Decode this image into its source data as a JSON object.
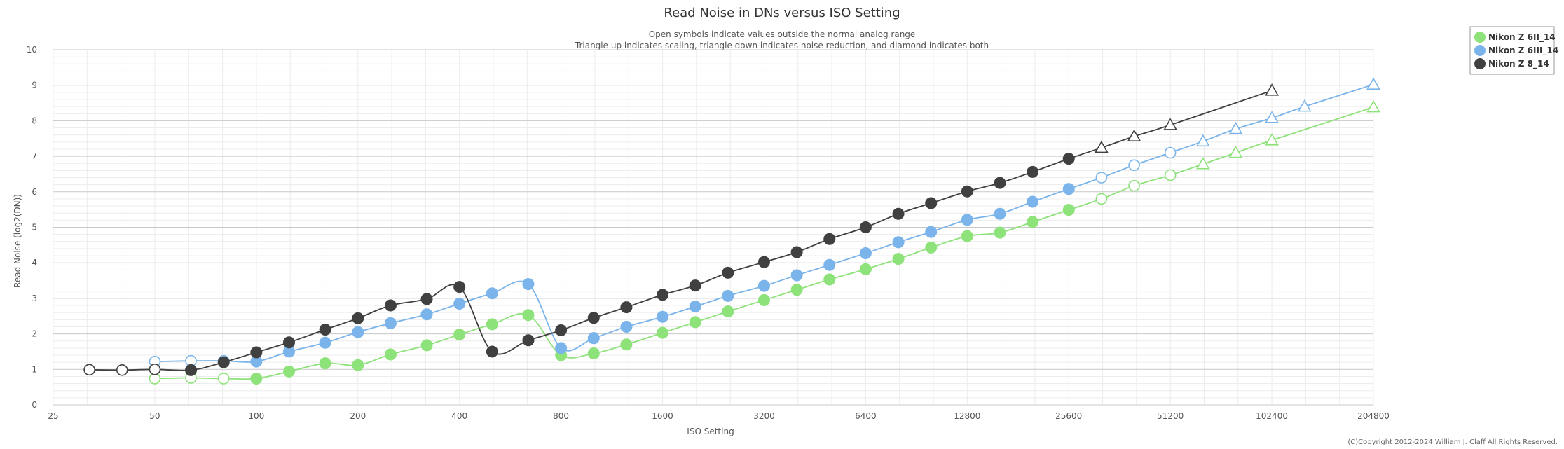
{
  "chart_data": {
    "type": "line",
    "title": "Read Noise in DNs versus ISO Setting",
    "subtitle_lines": [
      "Open symbols indicate values outside the normal analog range",
      "Triangle up indicates scaling, triangle down indicates noise reduction, and diamond indicates both"
    ],
    "xlabel": "ISO Setting",
    "ylabel": "Read Noise (log2(DN))",
    "x_scale": "log2",
    "x_range": [
      25,
      204800
    ],
    "x_ticks": [
      "25",
      "50",
      "100",
      "200",
      "400",
      "800",
      "1600",
      "3200",
      "6400",
      "12800",
      "25600",
      "51200",
      "102400",
      "204800"
    ],
    "y_range": [
      0,
      10
    ],
    "y_ticks": [
      "0",
      "1",
      "2",
      "3",
      "4",
      "5",
      "6",
      "7",
      "8",
      "9",
      "10"
    ],
    "grid": true,
    "legend_position": "top-right",
    "copyright": "(C)Copyright 2012-2024 William J. Claff All Rights Reserved.",
    "series": [
      {
        "name": "Nikon Z 6II_14",
        "color": "#8ee27a",
        "points": [
          {
            "iso": 50,
            "y": 0.74,
            "m": "open"
          },
          {
            "iso": 64,
            "y": 0.76,
            "m": "open"
          },
          {
            "iso": 80,
            "y": 0.74,
            "m": "open"
          },
          {
            "iso": 100,
            "y": 0.74,
            "m": "filled"
          },
          {
            "iso": 125,
            "y": 0.94,
            "m": "filled"
          },
          {
            "iso": 160,
            "y": 1.17,
            "m": "filled"
          },
          {
            "iso": 200,
            "y": 1.12,
            "m": "filled"
          },
          {
            "iso": 250,
            "y": 1.42,
            "m": "filled"
          },
          {
            "iso": 320,
            "y": 1.68,
            "m": "filled"
          },
          {
            "iso": 400,
            "y": 1.98,
            "m": "filled"
          },
          {
            "iso": 500,
            "y": 2.27,
            "m": "filled"
          },
          {
            "iso": 640,
            "y": 2.53,
            "m": "filled"
          },
          {
            "iso": 800,
            "y": 1.4,
            "m": "filled"
          },
          {
            "iso": 1000,
            "y": 1.45,
            "m": "filled"
          },
          {
            "iso": 1250,
            "y": 1.7,
            "m": "filled"
          },
          {
            "iso": 1600,
            "y": 2.03,
            "m": "filled"
          },
          {
            "iso": 2000,
            "y": 2.33,
            "m": "filled"
          },
          {
            "iso": 2500,
            "y": 2.63,
            "m": "filled"
          },
          {
            "iso": 3200,
            "y": 2.95,
            "m": "filled"
          },
          {
            "iso": 4000,
            "y": 3.24,
            "m": "filled"
          },
          {
            "iso": 5000,
            "y": 3.53,
            "m": "filled"
          },
          {
            "iso": 6400,
            "y": 3.82,
            "m": "filled"
          },
          {
            "iso": 8000,
            "y": 4.11,
            "m": "filled"
          },
          {
            "iso": 10000,
            "y": 4.43,
            "m": "filled"
          },
          {
            "iso": 12800,
            "y": 4.75,
            "m": "filled"
          },
          {
            "iso": 16000,
            "y": 4.85,
            "m": "filled"
          },
          {
            "iso": 20000,
            "y": 5.15,
            "m": "filled"
          },
          {
            "iso": 25600,
            "y": 5.49,
            "m": "filled"
          },
          {
            "iso": 32000,
            "y": 5.8,
            "m": "open"
          },
          {
            "iso": 40000,
            "y": 6.17,
            "m": "open"
          },
          {
            "iso": 51200,
            "y": 6.47,
            "m": "open"
          },
          {
            "iso": 64000,
            "y": 6.78,
            "m": "tri"
          },
          {
            "iso": 80000,
            "y": 7.1,
            "m": "tri"
          },
          {
            "iso": 102400,
            "y": 7.45,
            "m": "tri"
          },
          {
            "iso": 204800,
            "y": 8.38,
            "m": "tri"
          }
        ]
      },
      {
        "name": "Nikon Z 6III_14",
        "color": "#7ab4ea",
        "points": [
          {
            "iso": 50,
            "y": 1.22,
            "m": "open"
          },
          {
            "iso": 64,
            "y": 1.24,
            "m": "open"
          },
          {
            "iso": 80,
            "y": 1.24,
            "m": "open"
          },
          {
            "iso": 100,
            "y": 1.22,
            "m": "filled"
          },
          {
            "iso": 125,
            "y": 1.5,
            "m": "filled"
          },
          {
            "iso": 160,
            "y": 1.75,
            "m": "filled"
          },
          {
            "iso": 200,
            "y": 2.05,
            "m": "filled"
          },
          {
            "iso": 250,
            "y": 2.3,
            "m": "filled"
          },
          {
            "iso": 320,
            "y": 2.55,
            "m": "filled"
          },
          {
            "iso": 400,
            "y": 2.85,
            "m": "filled"
          },
          {
            "iso": 500,
            "y": 3.14,
            "m": "filled"
          },
          {
            "iso": 640,
            "y": 3.4,
            "m": "filled"
          },
          {
            "iso": 800,
            "y": 1.6,
            "m": "filled"
          },
          {
            "iso": 1000,
            "y": 1.88,
            "m": "filled"
          },
          {
            "iso": 1250,
            "y": 2.2,
            "m": "filled"
          },
          {
            "iso": 1600,
            "y": 2.48,
            "m": "filled"
          },
          {
            "iso": 2000,
            "y": 2.77,
            "m": "filled"
          },
          {
            "iso": 2500,
            "y": 3.07,
            "m": "filled"
          },
          {
            "iso": 3200,
            "y": 3.35,
            "m": "filled"
          },
          {
            "iso": 4000,
            "y": 3.65,
            "m": "filled"
          },
          {
            "iso": 5000,
            "y": 3.94,
            "m": "filled"
          },
          {
            "iso": 6400,
            "y": 4.27,
            "m": "filled"
          },
          {
            "iso": 8000,
            "y": 4.58,
            "m": "filled"
          },
          {
            "iso": 10000,
            "y": 4.87,
            "m": "filled"
          },
          {
            "iso": 12800,
            "y": 5.21,
            "m": "filled"
          },
          {
            "iso": 16000,
            "y": 5.38,
            "m": "filled"
          },
          {
            "iso": 20000,
            "y": 5.72,
            "m": "filled"
          },
          {
            "iso": 25600,
            "y": 6.08,
            "m": "filled"
          },
          {
            "iso": 32000,
            "y": 6.4,
            "m": "open"
          },
          {
            "iso": 40000,
            "y": 6.75,
            "m": "open"
          },
          {
            "iso": 51200,
            "y": 7.1,
            "m": "open"
          },
          {
            "iso": 64000,
            "y": 7.42,
            "m": "tri"
          },
          {
            "iso": 80000,
            "y": 7.77,
            "m": "tri"
          },
          {
            "iso": 102400,
            "y": 8.08,
            "m": "tri"
          },
          {
            "iso": 128000,
            "y": 8.4,
            "m": "tri"
          },
          {
            "iso": 204800,
            "y": 9.02,
            "m": "tri"
          }
        ]
      },
      {
        "name": "Nikon Z 8_14",
        "color": "#404040",
        "points": [
          {
            "iso": 32,
            "y": 0.99,
            "m": "open"
          },
          {
            "iso": 40,
            "y": 0.98,
            "m": "open"
          },
          {
            "iso": 50,
            "y": 1.0,
            "m": "open"
          },
          {
            "iso": 64,
            "y": 0.98,
            "m": "filled"
          },
          {
            "iso": 80,
            "y": 1.2,
            "m": "filled"
          },
          {
            "iso": 100,
            "y": 1.48,
            "m": "filled"
          },
          {
            "iso": 125,
            "y": 1.76,
            "m": "filled"
          },
          {
            "iso": 160,
            "y": 2.12,
            "m": "filled"
          },
          {
            "iso": 200,
            "y": 2.44,
            "m": "filled"
          },
          {
            "iso": 250,
            "y": 2.8,
            "m": "filled"
          },
          {
            "iso": 320,
            "y": 2.98,
            "m": "filled"
          },
          {
            "iso": 400,
            "y": 3.32,
            "m": "filled"
          },
          {
            "iso": 500,
            "y": 1.5,
            "m": "filled"
          },
          {
            "iso": 640,
            "y": 1.82,
            "m": "filled"
          },
          {
            "iso": 800,
            "y": 2.1,
            "m": "filled"
          },
          {
            "iso": 1000,
            "y": 2.45,
            "m": "filled"
          },
          {
            "iso": 1250,
            "y": 2.75,
            "m": "filled"
          },
          {
            "iso": 1600,
            "y": 3.1,
            "m": "filled"
          },
          {
            "iso": 2000,
            "y": 3.36,
            "m": "filled"
          },
          {
            "iso": 2500,
            "y": 3.72,
            "m": "filled"
          },
          {
            "iso": 3200,
            "y": 4.02,
            "m": "filled"
          },
          {
            "iso": 4000,
            "y": 4.3,
            "m": "filled"
          },
          {
            "iso": 5000,
            "y": 4.67,
            "m": "filled"
          },
          {
            "iso": 6400,
            "y": 5.0,
            "m": "filled"
          },
          {
            "iso": 8000,
            "y": 5.38,
            "m": "filled"
          },
          {
            "iso": 10000,
            "y": 5.68,
            "m": "filled"
          },
          {
            "iso": 12800,
            "y": 6.01,
            "m": "filled"
          },
          {
            "iso": 16000,
            "y": 6.25,
            "m": "filled"
          },
          {
            "iso": 20000,
            "y": 6.56,
            "m": "filled"
          },
          {
            "iso": 25600,
            "y": 6.93,
            "m": "filled"
          },
          {
            "iso": 32000,
            "y": 7.24,
            "m": "tri"
          },
          {
            "iso": 40000,
            "y": 7.56,
            "m": "tri"
          },
          {
            "iso": 51200,
            "y": 7.88,
            "m": "tri"
          },
          {
            "iso": 102400,
            "y": 8.85,
            "m": "tri"
          }
        ]
      }
    ]
  }
}
